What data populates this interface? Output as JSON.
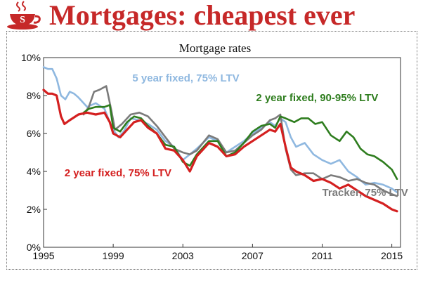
{
  "headline": "Mortgages: cheapest ever",
  "logo": {
    "icon": "teacup-logo-icon",
    "letter": "S",
    "color": "#c62828"
  },
  "chart_data": {
    "type": "line",
    "title": "Mortgage rates",
    "xlabel": "",
    "ylabel": "",
    "xlim": [
      1995,
      2015.5
    ],
    "ylim": [
      0,
      10
    ],
    "x_ticks": [
      1995,
      1999,
      2003,
      2007,
      2011,
      2015
    ],
    "x_tick_labels": [
      "1995",
      "1999",
      "2003",
      "2007",
      "2011",
      "2015"
    ],
    "y_ticks": [
      0,
      2,
      4,
      6,
      8,
      10
    ],
    "y_tick_labels": [
      "0%",
      "2%",
      "4%",
      "6%",
      "8%",
      "10%"
    ],
    "grid": false,
    "series": [
      {
        "name": "5 year fixed, 75% LTV",
        "color": "#8fb8e0",
        "label_pos": [
          2000.1,
          8.75
        ],
        "x": [
          1995,
          1995.25,
          1995.5,
          1995.75,
          1996,
          1996.25,
          1996.5,
          1996.75,
          1997,
          1997.5,
          1998,
          1998.5,
          1998.8,
          1999,
          1999.3,
          1999.6,
          2000,
          2000.5,
          2001,
          2001.5,
          2002,
          2002.5,
          2003,
          2003.4,
          2003.8,
          2004.5,
          2005,
          2005.5,
          2006,
          2006.5,
          2007,
          2007.5,
          2008,
          2008.3,
          2008.6,
          2008.9,
          2009.2,
          2009.5,
          2010,
          2010.5,
          2011,
          2011.5,
          2012,
          2012.5,
          2013,
          2013.5,
          2014,
          2014.5,
          2015,
          2015.3
        ],
        "values": [
          9.5,
          9.4,
          9.4,
          8.9,
          8.0,
          7.8,
          8.2,
          8.1,
          7.9,
          7.4,
          7.6,
          7.3,
          6.6,
          6.2,
          5.8,
          6.1,
          6.8,
          6.7,
          6.5,
          6.2,
          5.6,
          5.3,
          4.6,
          4.9,
          5.2,
          5.8,
          5.6,
          5.0,
          5.3,
          5.6,
          6.0,
          6.3,
          6.6,
          6.4,
          6.8,
          6.6,
          5.8,
          5.3,
          5.5,
          4.9,
          4.6,
          4.4,
          4.6,
          4.0,
          3.7,
          3.3,
          3.4,
          3.3,
          3.1,
          2.9
        ]
      },
      {
        "name": "Tracker, 75% LTV",
        "color": "#7b7b7b",
        "label_pos": [
          2011.0,
          2.7
        ],
        "x": [
          1997.3,
          1997.6,
          1997.9,
          1998.2,
          1998.6,
          1998.9,
          1999.1,
          1999.5,
          2000,
          2000.5,
          2001,
          2001.5,
          2002,
          2002.5,
          2003,
          2003.4,
          2003.8,
          2004.5,
          2005,
          2005.5,
          2006,
          2006.5,
          2007,
          2007.5,
          2008,
          2008.3,
          2008.6,
          2008.9,
          2009.2,
          2009.5,
          2010,
          2010.5,
          2011,
          2011.5,
          2012,
          2012.5,
          2013,
          2013.5,
          2014,
          2014.5,
          2015,
          2015.3
        ],
        "values": [
          7.0,
          7.4,
          8.2,
          8.3,
          8.5,
          7.2,
          6.2,
          6.5,
          7.0,
          7.1,
          6.9,
          6.4,
          5.8,
          5.2,
          5.0,
          4.9,
          5.1,
          5.9,
          5.7,
          5.0,
          5.1,
          5.5,
          5.9,
          6.2,
          6.7,
          6.8,
          7.0,
          5.2,
          4.1,
          3.8,
          3.9,
          3.9,
          3.6,
          3.8,
          3.7,
          3.5,
          3.6,
          3.4,
          3.3,
          3.0,
          2.8,
          2.7
        ]
      },
      {
        "name": "2 year fixed, 90-95% LTV",
        "color": "#2e7d1e",
        "label_pos": [
          2007.2,
          7.7
        ],
        "x": [
          1997.3,
          1997.6,
          1998,
          1998.5,
          1998.8,
          1999,
          1999.4,
          1999.8,
          2000.2,
          2000.6,
          2001,
          2001.5,
          2002,
          2002.5,
          2003,
          2003.4,
          2003.8,
          2004.5,
          2005,
          2005.5,
          2006,
          2006.5,
          2007,
          2007.5,
          2008,
          2008.3,
          2008.6,
          2008.9,
          2009.4,
          2009.8,
          2010.2,
          2010.6,
          2011,
          2011.5,
          2012,
          2012.4,
          2012.8,
          2013.2,
          2013.6,
          2014,
          2014.5,
          2015,
          2015.3
        ],
        "values": [
          7.1,
          7.3,
          7.4,
          7.4,
          7.5,
          6.3,
          6.1,
          6.6,
          6.9,
          6.8,
          6.4,
          6.0,
          5.4,
          5.3,
          4.5,
          4.3,
          4.9,
          5.6,
          5.6,
          4.8,
          5.0,
          5.5,
          6.1,
          6.4,
          6.5,
          6.3,
          6.9,
          6.8,
          6.6,
          6.8,
          6.8,
          6.5,
          6.6,
          5.9,
          5.6,
          6.1,
          5.8,
          5.2,
          4.9,
          4.8,
          4.5,
          4.1,
          3.6
        ]
      },
      {
        "name": "2 year fixed, 75% LTV",
        "color": "#d42020",
        "label_pos": [
          1996.2,
          3.75
        ],
        "x": [
          1995,
          1995.25,
          1995.5,
          1995.75,
          1996,
          1996.2,
          1996.5,
          1997,
          1997.5,
          1998,
          1998.5,
          1998.8,
          1999,
          1999.4,
          1999.8,
          2000.2,
          2000.6,
          2001,
          2001.5,
          2002,
          2002.5,
          2003,
          2003.4,
          2003.8,
          2004.5,
          2005,
          2005.5,
          2006,
          2006.5,
          2007,
          2007.5,
          2008,
          2008.3,
          2008.6,
          2008.9,
          2009.2,
          2009.5,
          2010,
          2010.5,
          2011,
          2011.5,
          2012,
          2012.5,
          2013,
          2013.5,
          2014,
          2014.5,
          2015,
          2015.3
        ],
        "values": [
          8.3,
          8.1,
          8.1,
          8.0,
          6.9,
          6.5,
          6.7,
          7.0,
          7.1,
          7.0,
          7.1,
          6.6,
          6.0,
          5.8,
          6.2,
          6.6,
          6.7,
          6.3,
          6.0,
          5.2,
          5.1,
          4.6,
          4.0,
          4.8,
          5.5,
          5.3,
          4.8,
          4.9,
          5.3,
          5.6,
          5.9,
          6.2,
          6.1,
          6.5,
          5.3,
          4.2,
          4.0,
          3.8,
          3.5,
          3.6,
          3.4,
          3.1,
          3.3,
          3.0,
          2.7,
          2.5,
          2.3,
          2.0,
          1.9
        ]
      }
    ]
  }
}
